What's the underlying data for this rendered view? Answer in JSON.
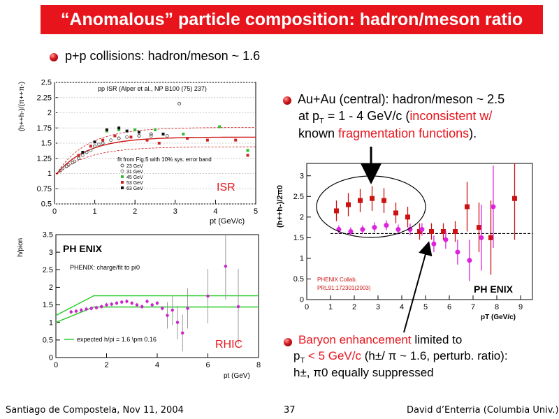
{
  "slide": {
    "title": "“Anomalous” particle composition: hadron/meson ratio",
    "bullet1": "p+p collisions: hadron/meson ~ 1.6",
    "bullet2_line1": "Au+Au (central): hadron/meson ~ 2.5",
    "bullet2_line2_a": "at p",
    "bullet2_line2_sub": "T",
    "bullet2_line2_b": " = 1 - 4 GeV/c (",
    "bullet2_line2_red": "inconsistent w/",
    "bullet2_line3_a": "known ",
    "bullet2_line3_red": "fragmentation functions",
    "bullet2_line3_b": ").",
    "bullet3_red": "Baryon enhancement",
    "bullet3_rest": " limited to",
    "bullet3_line2_a": "p",
    "bullet3_line2_sub": "T",
    "bullet3_line2_red": " < 5 GeV/c",
    "bullet3_line2_b": " (h±/ π ~ 1.6, perturb. ratio):",
    "bullet3_line3": "h±, π0  equally suppressed",
    "footer_left": "Santiago de Compostela, Nov 11, 2004",
    "footer_page": "37",
    "footer_right": "David d’Enterria (Columbia Univ.)"
  },
  "chart_data": [
    {
      "type": "scatter",
      "panel": "ISR",
      "title": "pp ISR (Alper et al., NP B100 (75) 237)",
      "xlabel": "pt (GeV/c)",
      "ylabel": "(h++h-)/(π++π-)",
      "xlim": [
        0,
        5
      ],
      "ylim": [
        0.5,
        2.5
      ],
      "xticks": [
        "0",
        "1",
        "2",
        "3",
        "4",
        "5"
      ],
      "yticks": [
        "0.5",
        "0.75",
        "1",
        "1.25",
        "1.5",
        "1.75",
        "2",
        "2.25",
        "2.5"
      ],
      "fit_label": "fit from Fig.5 with 10% sys. error band",
      "panel_label": "ISR",
      "series": [
        {
          "name": "23 GeV",
          "color": "#555555",
          "values": [
            [
              0.15,
              1.05
            ],
            [
              0.3,
              1.12
            ],
            [
              0.45,
              1.18
            ],
            [
              0.6,
              1.25
            ],
            [
              0.8,
              1.35
            ],
            [
              1.0,
              1.45
            ],
            [
              1.2,
              1.5
            ],
            [
              1.6,
              1.58
            ],
            [
              2.1,
              1.62
            ],
            [
              2.4,
              1.65
            ],
            [
              3.1,
              2.15
            ]
          ]
        },
        {
          "name": "31 GeV",
          "color": "#777777",
          "values": [
            [
              0.2,
              1.08
            ],
            [
              0.35,
              1.14
            ],
            [
              0.5,
              1.2
            ],
            [
              0.7,
              1.3
            ],
            [
              0.9,
              1.38
            ],
            [
              1.1,
              1.48
            ],
            [
              1.4,
              1.55
            ],
            [
              1.8,
              1.6
            ],
            [
              2.4,
              1.62
            ],
            [
              2.8,
              1.62
            ]
          ]
        },
        {
          "name": "45 GeV",
          "color": "#33bb33",
          "values": [
            [
              1.3,
              1.7
            ],
            [
              1.6,
              1.72
            ],
            [
              2.0,
              1.72
            ],
            [
              2.5,
              1.72
            ],
            [
              3.2,
              1.65
            ],
            [
              4.1,
              1.77
            ],
            [
              4.8,
              1.38
            ]
          ]
        },
        {
          "name": "53 GeV",
          "color": "#cc2222",
          "values": [
            [
              0.6,
              1.3
            ],
            [
              0.9,
              1.45
            ],
            [
              1.2,
              1.55
            ],
            [
              1.5,
              1.62
            ],
            [
              1.9,
              1.6
            ],
            [
              2.3,
              1.55
            ],
            [
              2.6,
              1.5
            ],
            [
              3.3,
              1.58
            ],
            [
              3.8,
              1.55
            ],
            [
              4.5,
              1.55
            ],
            [
              4.8,
              1.3
            ]
          ]
        },
        {
          "name": "63 GeV",
          "color": "#111111",
          "values": [
            [
              0.7,
              1.35
            ],
            [
              1.0,
              1.52
            ],
            [
              1.3,
              1.72
            ],
            [
              1.6,
              1.75
            ],
            [
              1.8,
              1.7
            ],
            [
              2.1,
              1.68
            ],
            [
              2.7,
              1.65
            ]
          ]
        }
      ]
    },
    {
      "type": "scatter",
      "panel": "AuAu",
      "xlabel": "pT  (GeV/c)",
      "ylabel": "(h++h-)/2π0",
      "xlim": [
        0,
        9.5
      ],
      "ylim": [
        0,
        3.3
      ],
      "xticks": [
        "0",
        "1",
        "2",
        "3",
        "4",
        "5",
        "6",
        "7",
        "8",
        "9"
      ],
      "yticks": [
        "0",
        "0.5",
        "1",
        "1.5",
        "2",
        "2.5",
        "3"
      ],
      "reference_line": 1.6,
      "credit_line1": "PHENIX Collab.",
      "credit_line2": "PRL91:172301(2003)",
      "logo_text": "PH ENIX",
      "series": [
        {
          "name": "",
          "color": "#cc1111",
          "marker": "square",
          "values": [
            [
              1.25,
              2.15,
              0.25
            ],
            [
              1.75,
              2.3,
              0.28
            ],
            [
              2.25,
              2.4,
              0.28
            ],
            [
              2.75,
              2.45,
              0.3
            ],
            [
              3.25,
              2.4,
              0.3
            ],
            [
              3.75,
              2.1,
              0.25
            ],
            [
              4.25,
              2.0,
              0.25
            ],
            [
              4.75,
              1.65,
              0.2
            ],
            [
              5.25,
              1.65,
              0.2
            ],
            [
              5.75,
              1.65,
              0.2
            ],
            [
              6.25,
              1.65,
              0.25
            ],
            [
              6.75,
              2.25,
              0.6
            ],
            [
              7.25,
              1.75,
              0.6
            ],
            [
              7.75,
              1.5,
              0.9
            ],
            [
              8.75,
              2.45,
              1.0
            ]
          ]
        },
        {
          "name": "",
          "color": "#dd22dd",
          "marker": "circle",
          "values": [
            [
              1.35,
              1.7,
              0.1
            ],
            [
              1.85,
              1.65,
              0.1
            ],
            [
              2.35,
              1.7,
              0.1
            ],
            [
              2.85,
              1.75,
              0.12
            ],
            [
              3.35,
              1.8,
              0.12
            ],
            [
              3.85,
              1.7,
              0.12
            ],
            [
              4.35,
              1.7,
              0.14
            ],
            [
              4.85,
              1.7,
              0.15
            ],
            [
              5.35,
              1.35,
              0.2
            ],
            [
              5.85,
              1.45,
              0.22
            ],
            [
              6.35,
              1.15,
              0.3
            ],
            [
              6.85,
              0.95,
              0.5
            ],
            [
              7.35,
              1.5,
              0.8
            ],
            [
              7.85,
              2.25,
              1.0
            ]
          ]
        }
      ]
    },
    {
      "type": "scatter",
      "panel": "RHIC",
      "title": "PHENIX: charge/fit to pi0",
      "xlabel": "pt (GeV)",
      "ylabel": "h/pion",
      "xlim": [
        0,
        8
      ],
      "ylim": [
        0,
        3.5
      ],
      "xticks": [
        "0",
        "2",
        "4",
        "6",
        "8"
      ],
      "yticks": [
        "0",
        "0.5",
        "1",
        "1.5",
        "2",
        "2.5",
        "3",
        "3.5"
      ],
      "legend": "expected h/pi = 1.6 \\pm 0.16",
      "panel_label": "RHIC",
      "logo_text": "PH ENIX",
      "series": [
        {
          "name": "",
          "color": "#cc22cc",
          "values": [
            [
              0.6,
              1.3
            ],
            [
              0.8,
              1.32
            ],
            [
              1.0,
              1.35
            ],
            [
              1.2,
              1.38
            ],
            [
              1.4,
              1.4
            ],
            [
              1.6,
              1.42
            ],
            [
              1.8,
              1.45
            ],
            [
              2.0,
              1.5
            ],
            [
              2.2,
              1.52
            ],
            [
              2.4,
              1.55
            ],
            [
              2.6,
              1.58
            ],
            [
              2.8,
              1.6
            ],
            [
              3.0,
              1.55
            ],
            [
              3.2,
              1.5
            ],
            [
              3.4,
              1.45
            ],
            [
              3.6,
              1.6
            ],
            [
              3.8,
              1.5
            ],
            [
              4.0,
              1.55
            ],
            [
              4.2,
              1.4
            ],
            [
              4.4,
              1.2
            ],
            [
              4.6,
              1.35
            ],
            [
              4.8,
              1.0
            ],
            [
              5.0,
              0.7
            ],
            [
              5.2,
              1.4
            ],
            [
              6.0,
              1.75
            ],
            [
              6.7,
              2.6
            ],
            [
              7.2,
              1.45
            ]
          ]
        }
      ]
    }
  ]
}
